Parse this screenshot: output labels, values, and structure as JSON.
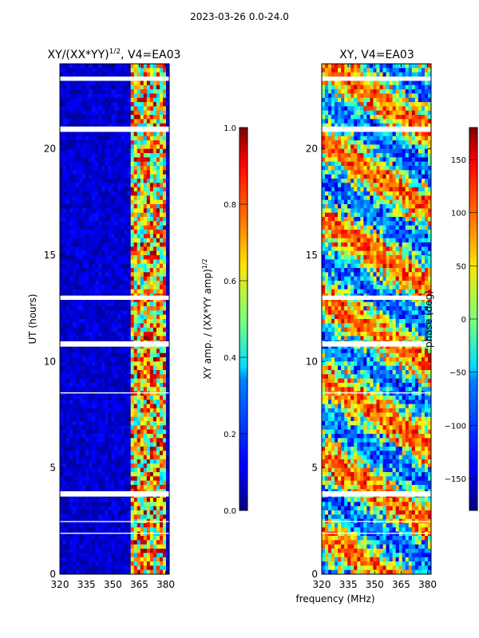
{
  "suptitle": "2023-03-26 0.0-24.0",
  "xlabel_shared": "frequency (MHz)",
  "chart_data": [
    {
      "type": "heatmap",
      "title_main": "XY/(XX*YY)",
      "title_sup": "1/2",
      "title_tail": ", V4=EA03",
      "ylabel": "UT (hours)",
      "xlim": [
        320,
        382
      ],
      "ylim": [
        0,
        24
      ],
      "xticks": [
        "320",
        "335",
        "350",
        "365",
        "380"
      ],
      "xtick_values": [
        320,
        335,
        350,
        365,
        380
      ],
      "yticks": [
        "0",
        "5",
        "10",
        "15",
        "20"
      ],
      "ytick_values": [
        0,
        5,
        10,
        15,
        20
      ],
      "colorbar": {
        "label_main": "XY amp. / (XX*YY amp)",
        "label_sup": "1/2",
        "range": [
          0.0,
          1.0
        ],
        "ticks": [
          "0.0",
          "0.2",
          "0.4",
          "0.6",
          "0.8",
          "1.0"
        ],
        "tick_values": [
          0.0,
          0.2,
          0.4,
          0.6,
          0.8,
          1.0
        ]
      },
      "flagged_hours": [
        [
          3.65,
          3.9
        ],
        [
          10.7,
          10.95
        ],
        [
          12.9,
          13.1
        ],
        [
          20.8,
          21.05
        ],
        [
          23.2,
          23.4
        ],
        [
          1.9,
          1.95
        ],
        [
          2.45,
          2.5
        ],
        [
          8.5,
          8.55
        ]
      ],
      "high_amplitude_band_mhz": [
        361,
        380
      ]
    },
    {
      "type": "heatmap",
      "title_main": "XY, V4=EA03",
      "ylabel": "",
      "xlim": [
        320,
        382
      ],
      "ylim": [
        0,
        24
      ],
      "xticks": [
        "320",
        "335",
        "350",
        "365",
        "380"
      ],
      "xtick_values": [
        320,
        335,
        350,
        365,
        380
      ],
      "yticks": [
        "0",
        "5",
        "10",
        "15",
        "20"
      ],
      "ytick_values": [
        0,
        5,
        10,
        15,
        20
      ],
      "colorbar": {
        "label_main": "phase (deg)",
        "range": [
          -180,
          180
        ],
        "ticks": [
          "−150",
          "−100",
          "−50",
          "0",
          "50",
          "100",
          "150"
        ],
        "tick_values": [
          -150,
          -100,
          -50,
          0,
          50,
          100,
          150
        ]
      },
      "flagged_hours": [
        [
          3.65,
          3.9
        ],
        [
          10.7,
          10.95
        ],
        [
          12.9,
          13.1
        ],
        [
          20.8,
          21.05
        ],
        [
          23.2,
          23.4
        ],
        [
          1.9,
          1.95
        ],
        [
          2.45,
          2.5
        ],
        [
          8.5,
          8.55
        ]
      ]
    }
  ]
}
